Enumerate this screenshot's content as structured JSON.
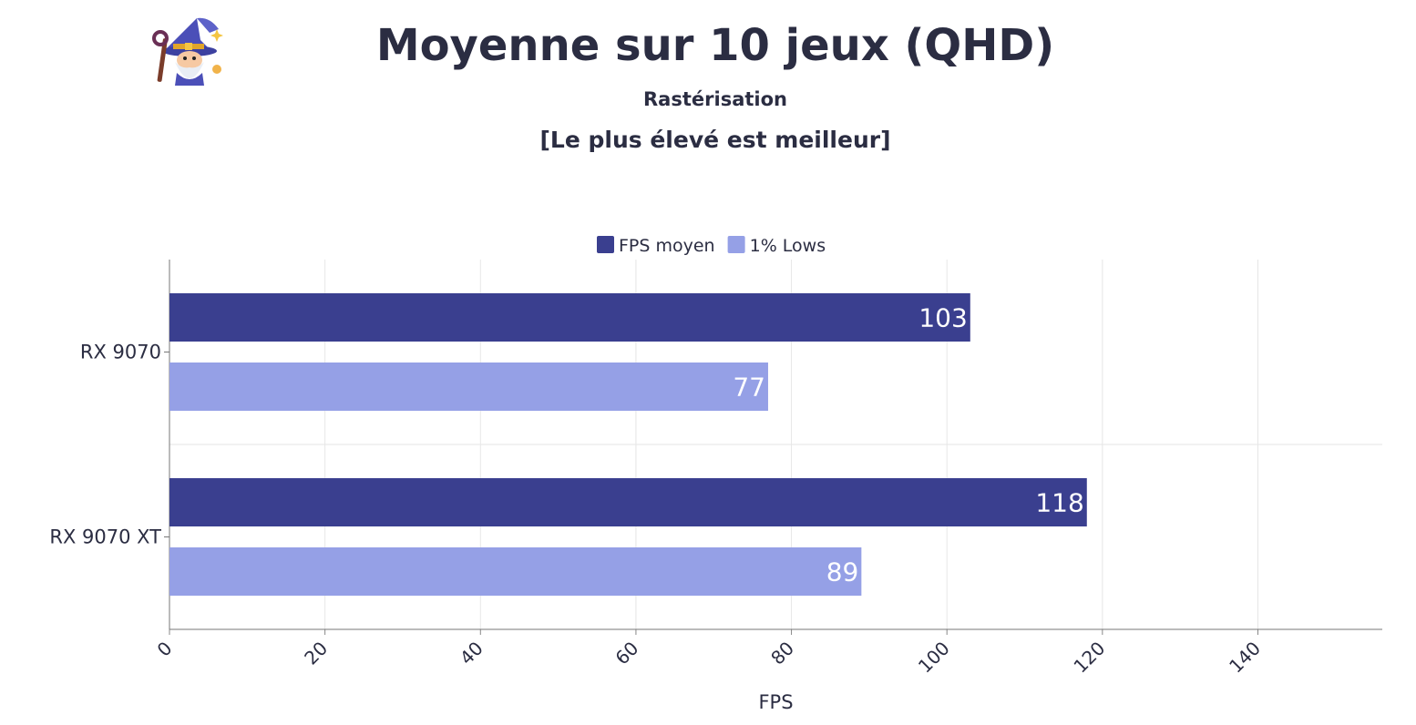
{
  "header": {
    "title": "Moyenne sur 10 jeux (QHD)",
    "subtitle": "Rastérisation",
    "note": "[Le plus élevé est meilleur]"
  },
  "logo": {
    "icon": "wizard-icon"
  },
  "chart_data": {
    "type": "bar",
    "orientation": "horizontal",
    "categories": [
      "RX 9070",
      "RX 9070 XT"
    ],
    "series": [
      {
        "name": "FPS moyen",
        "values": [
          103,
          118
        ],
        "color": "#3a3f8f"
      },
      {
        "name": "1% Lows",
        "values": [
          77,
          89
        ],
        "color": "#95a0e6"
      }
    ],
    "xlabel": "FPS",
    "ylabel": "",
    "xlim": [
      0,
      156
    ],
    "xticks": [
      0,
      20,
      40,
      60,
      80,
      100,
      120,
      140
    ],
    "grid": true,
    "legend": "top-center",
    "data_labels": true
  }
}
